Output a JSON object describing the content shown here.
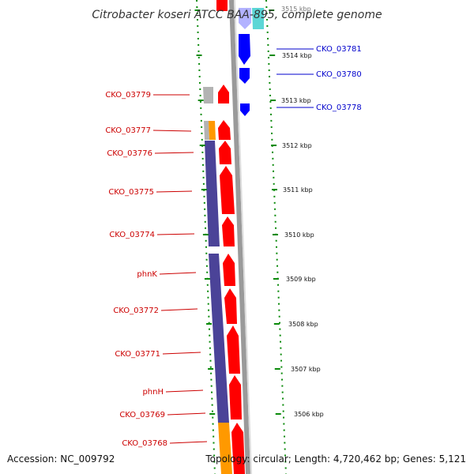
{
  "map": {
    "title": "Citrobacter koseri ATCC BAA-895, complete genome",
    "accession": "Accession: NC_009792",
    "topology_info": "Topology: circular; Length: 4,720,462 bp; Genes: 5,121"
  },
  "colors": {
    "forward_cds": "#ff0000",
    "reverse_cds": "#0000ff",
    "cog_purple": "#4b4398",
    "cog_gray": "#b3b3b3",
    "cog_orange": "#ff9900",
    "cog_cyan": "#33cccc",
    "backbone": "#999999",
    "tick_green": "#0a8a0a",
    "forward_label": "#cc0000",
    "reverse_label": "#0000cc"
  },
  "ruler_labels": [
    {
      "label": "3515 kbp"
    },
    {
      "label": "3514 kbp"
    },
    {
      "label": "3513 kbp"
    },
    {
      "label": "3512 kbp"
    },
    {
      "label": "3511 kbp"
    },
    {
      "label": "3510 kbp"
    },
    {
      "label": "3509 kbp"
    },
    {
      "label": "3508 kbp"
    },
    {
      "label": "3507 kbp"
    },
    {
      "label": "3506 kbp"
    }
  ],
  "forward_genes": [
    {
      "label": "CKO_03779"
    },
    {
      "label": "CKO_03777"
    },
    {
      "label": "CKO_03776"
    },
    {
      "label": "CKO_03775"
    },
    {
      "label": "CKO_03774"
    },
    {
      "label": "phnK"
    },
    {
      "label": "CKO_03772"
    },
    {
      "label": "CKO_03771"
    },
    {
      "label": "phnH"
    },
    {
      "label": "CKO_03769"
    },
    {
      "label": "CKO_03768"
    }
  ],
  "reverse_genes": [
    {
      "label": "CKO_03781"
    },
    {
      "label": "CKO_03780"
    },
    {
      "label": "CKO_03778"
    }
  ]
}
